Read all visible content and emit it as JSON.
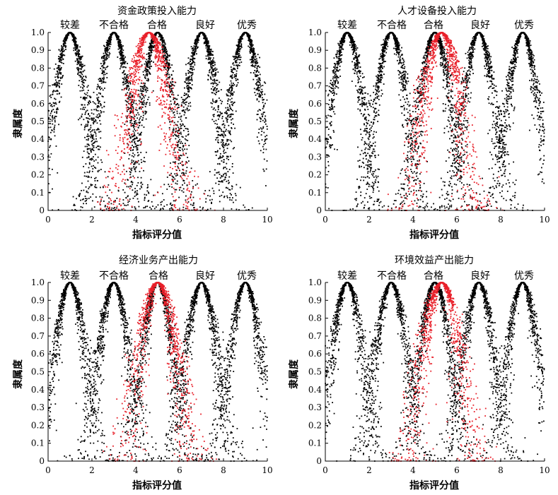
{
  "grades": [
    "较差",
    "不合格",
    "合格",
    "良好",
    "优秀"
  ],
  "xlabel": "指标评分值",
  "ylabel": "隶属度",
  "colors": {
    "base": "#000000",
    "highlight": "#e8202a"
  },
  "chart_data": [
    {
      "type": "scatter",
      "title": "资金政策投入能力",
      "xlim": [
        0,
        10
      ],
      "ylim": [
        0,
        1.0
      ],
      "xticks": [
        "0",
        "2",
        "4",
        "6",
        "8",
        "10"
      ],
      "yticks": [
        "0",
        "0.1",
        "0.2",
        "0.3",
        "0.4",
        "0.5",
        "0.6",
        "0.7",
        "0.8",
        "0.9",
        "1.0"
      ],
      "grade_centers": [
        1,
        3,
        5,
        7,
        9
      ],
      "highlight": {
        "peak_x": 4.6,
        "peak_y": 1.0
      },
      "grid": false,
      "legend": "none"
    },
    {
      "type": "scatter",
      "title": "人才设备投入能力",
      "xlim": [
        0,
        10
      ],
      "ylim": [
        0,
        1.0
      ],
      "xticks": [
        "0",
        "2",
        "4",
        "6",
        "8",
        "10"
      ],
      "yticks": [
        "0",
        "0.1",
        "0.2",
        "0.3",
        "0.4",
        "0.5",
        "0.6",
        "0.7",
        "0.8",
        "0.9",
        "1.0"
      ],
      "grade_centers": [
        1,
        3,
        5,
        7,
        9
      ],
      "highlight": {
        "peak_x": 5.3,
        "peak_y": 1.0
      },
      "grid": false,
      "legend": "none"
    },
    {
      "type": "scatter",
      "title": "经济业务产出能力",
      "xlim": [
        0,
        10
      ],
      "ylim": [
        0,
        1.0
      ],
      "xticks": [
        "0",
        "2",
        "4",
        "6",
        "8",
        "10"
      ],
      "yticks": [
        "0",
        "0.1",
        "0.2",
        "0.3",
        "0.4",
        "0.5",
        "0.6",
        "0.7",
        "0.8",
        "0.9",
        "1.0"
      ],
      "grade_centers": [
        1,
        3,
        5,
        7,
        9
      ],
      "highlight": {
        "peak_x": 5.0,
        "peak_y": 1.0
      },
      "grid": false,
      "legend": "none"
    },
    {
      "type": "scatter",
      "title": "环境效益产出能力",
      "xlim": [
        0,
        10
      ],
      "ylim": [
        0,
        1.0
      ],
      "xticks": [
        "0",
        "2",
        "4",
        "6",
        "8",
        "10"
      ],
      "yticks": [
        "0",
        "0.1",
        "0.2",
        "0.3",
        "0.4",
        "0.5",
        "0.6",
        "0.7",
        "0.8",
        "0.9",
        "1.0"
      ],
      "grade_centers": [
        1,
        3,
        5,
        7,
        9
      ],
      "highlight": {
        "peak_x": 5.3,
        "peak_y": 1.0
      },
      "grid": false,
      "legend": "none"
    }
  ]
}
